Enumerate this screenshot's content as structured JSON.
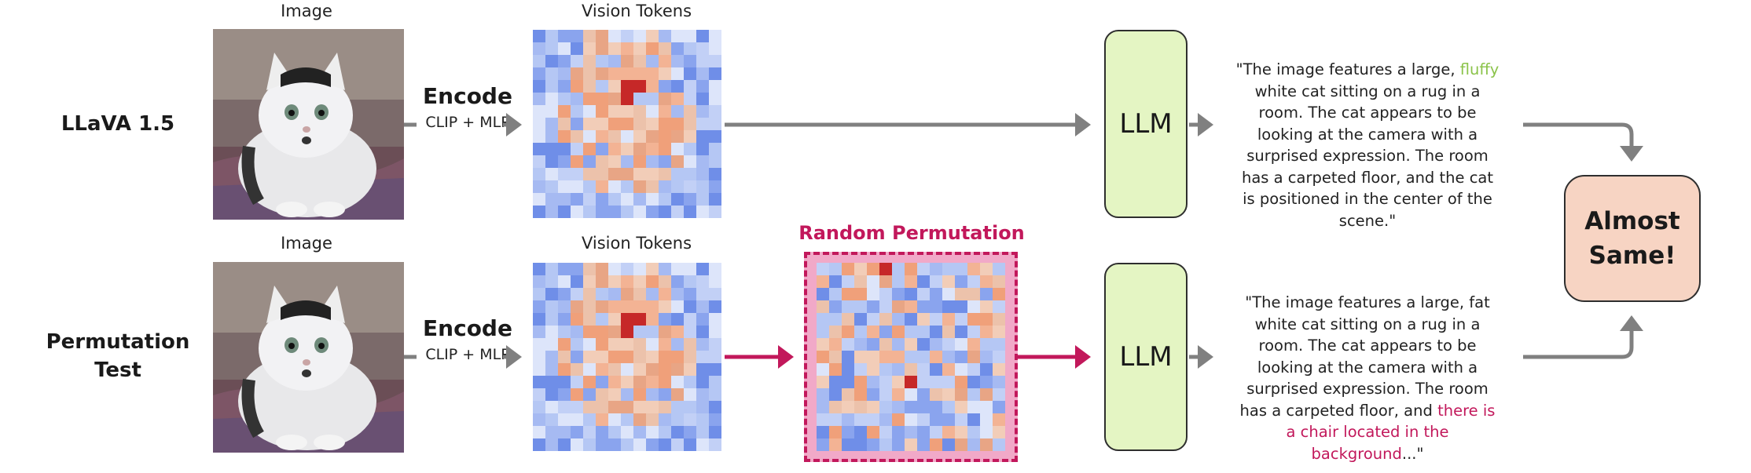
{
  "rows": {
    "top": {
      "title": "LLaVA 1.5",
      "image_label": "Image",
      "tokens_label": "Vision Tokens",
      "encode_title": "Encode",
      "encode_sub": "CLIP + MLP",
      "llm_label": "LLM",
      "caption_before": "\"The image features a large, ",
      "caption_highlight": "fluffy",
      "caption_after": " white cat sitting on a rug in a room. The cat appears to be looking at the camera with a surprised expression. The room has a carpeted floor, and the cat is positioned in the center of the scene.\""
    },
    "bottom": {
      "title_line1": "Permutation",
      "title_line2": "Test",
      "image_label": "Image",
      "tokens_label": "Vision Tokens",
      "encode_title": "Encode",
      "encode_sub": "CLIP + MLP",
      "llm_label": "LLM",
      "permutation_label": "Random Permutation",
      "caption_before": "\"The image features a large, fat white cat sitting on a rug in a room. The cat appears to be looking at the camera with a surprised expression. The room has a carpeted floor, and ",
      "caption_highlight": "there is a chair located in the background",
      "caption_after": "...\""
    }
  },
  "result": {
    "line1": "Almost",
    "line2": "Same!"
  },
  "colors": {
    "arrow_gray": "#808080",
    "arrow_magenta": "#c2185b",
    "llm_fill": "#e4f5c3",
    "result_fill": "#f7d4c3",
    "highlight_green": "#8bc34a",
    "highlight_magenta": "#c2185b"
  },
  "icons": {
    "photo": "cat-photo",
    "tokens": "vision-token-heatmap"
  }
}
